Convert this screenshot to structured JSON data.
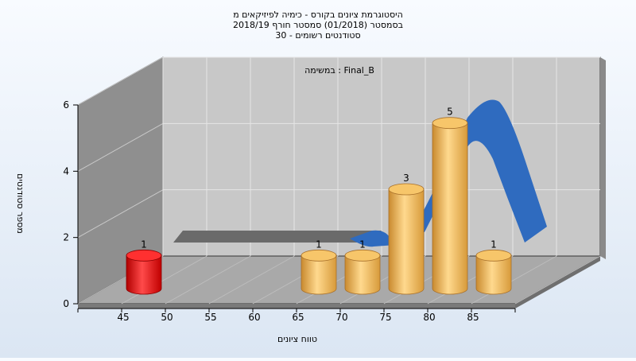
{
  "chart_data": {
    "type": "bar",
    "title_lines": [
      "היסטוגרמת ציונים בקורס - כימיה לפיזיקאים מ",
      "בסמסטר   (01/2018)   סמסטר חורף 2018/19",
      "סטודנטים רשומים - 30"
    ],
    "inner_label": "במשימה : Final_B",
    "xlabel": "טווח ציונים",
    "ylabel": "מספר סטודנטים",
    "x_ticks": [
      "45",
      "50",
      "55",
      "60",
      "65",
      "70",
      "75",
      "80",
      "85"
    ],
    "y_ticks": [
      0,
      2,
      4,
      6
    ],
    "ylim": [
      0,
      6
    ],
    "categories": [
      45,
      65,
      70,
      75,
      80,
      85
    ],
    "values": [
      1,
      1,
      1,
      3,
      5,
      1
    ],
    "highlight_color": "#e01010",
    "bar_color": "#f0b050",
    "curve_color": "#2f6bbf",
    "grid": true
  }
}
